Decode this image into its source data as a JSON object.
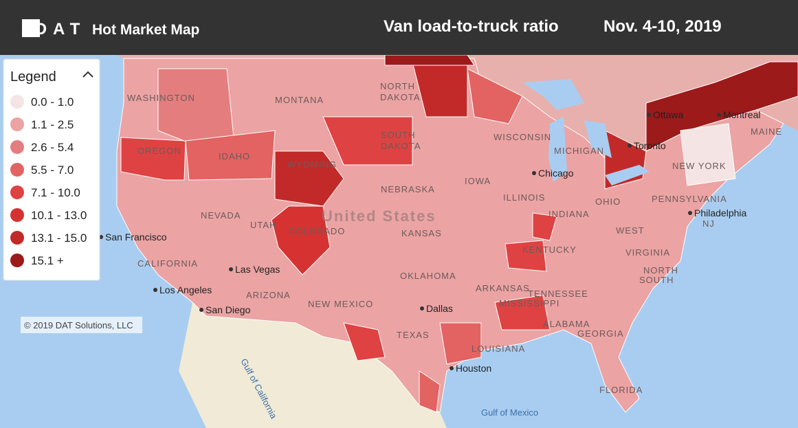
{
  "header": {
    "logo": "DAT",
    "title": "Hot Market Map",
    "metric": "Van load-to-truck ratio",
    "date": "Nov. 4-10, 2019"
  },
  "legend": {
    "title": "Legend",
    "items": [
      {
        "label": "0.0 - 1.0",
        "color": "#f5e4e4"
      },
      {
        "label": "1.1 - 2.5",
        "color": "#eba3a3"
      },
      {
        "label": "2.6 - 5.4",
        "color": "#e47e7e"
      },
      {
        "label": "5.5 - 7.0",
        "color": "#e36262"
      },
      {
        "label": "7.1 - 10.0",
        "color": "#df4242"
      },
      {
        "label": "10.1 - 13.0",
        "color": "#d63232"
      },
      {
        "label": "13.1 - 15.0",
        "color": "#c22a2a"
      },
      {
        "label": "15.1 +",
        "color": "#9c1a1a"
      }
    ]
  },
  "copyright": "© 2019 DAT Solutions, LLC",
  "map_labels": [
    "WASHINGTON",
    "OREGON",
    "IDAHO",
    "MONTANA",
    "WYOMING",
    "NEVADA",
    "UTAH",
    "COLORADO",
    "CALIFORNIA",
    "ARIZONA",
    "NEW MEXICO",
    "NORTH",
    "DAKOTA",
    "SOUTH",
    "DAKOTA",
    "NEBRASKA",
    "KANSAS",
    "OKLAHOMA",
    "TEXAS",
    "WISCONSIN",
    "MICHIGAN",
    "IOWA",
    "ILLINOIS",
    "INDIANA",
    "OHIO",
    "KENTUCKY",
    "TENNESSEE",
    "ARKANSAS",
    "MISSISSIPPI",
    "ALABAMA",
    "GEORGIA",
    "LOUISIANA",
    "FLORIDA",
    "WEST",
    "VIRGINIA",
    "NORTH",
    "SOUTH",
    "PENNSYLVANIA",
    "NEW YORK",
    "MAINE",
    "NJ",
    "United States"
  ],
  "cities": [
    "San Francisco",
    "Los Angeles",
    "San Diego",
    "Las Vegas",
    "Dallas",
    "Houston",
    "Chicago",
    "Toronto",
    "Ottawa",
    "Montreal",
    "Philadelphia"
  ],
  "seas": [
    "Gulf of California",
    "Gulf of Mexico"
  ]
}
